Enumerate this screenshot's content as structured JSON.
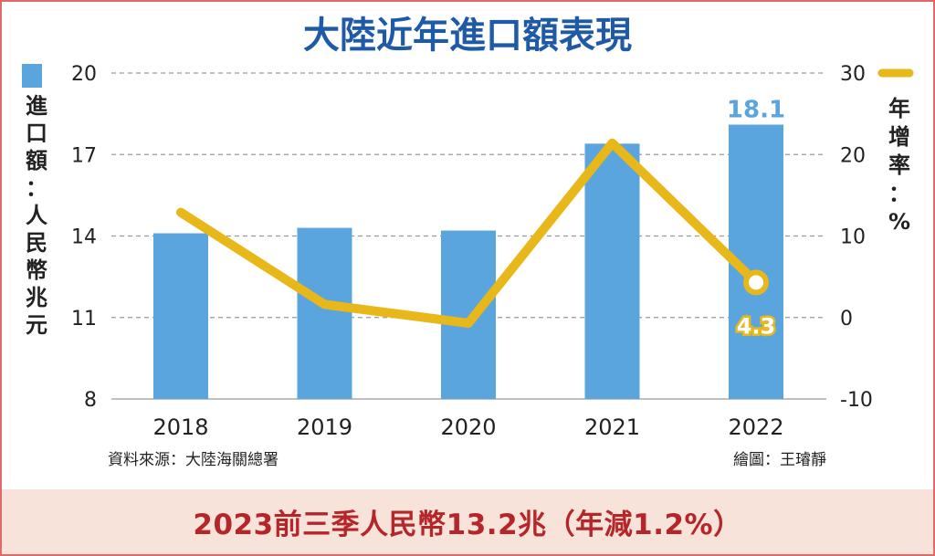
{
  "chart_data": {
    "type": "bar+line",
    "title": "大陸近年進口額表現",
    "categories": [
      "2018",
      "2019",
      "2020",
      "2021",
      "2022"
    ],
    "series": [
      {
        "name": "進口額",
        "type": "bar",
        "axis": "left",
        "values": [
          14.1,
          14.3,
          14.2,
          17.4,
          18.1
        ]
      },
      {
        "name": "年增率",
        "type": "line",
        "axis": "right",
        "values": [
          12.9,
          1.6,
          -0.7,
          21.4,
          4.3
        ]
      }
    ],
    "y_left": {
      "label": "進口額：人民幣兆元",
      "range": [
        8,
        20
      ],
      "ticks": [
        "8",
        "11",
        "14",
        "17",
        "20"
      ]
    },
    "y_right": {
      "label": "年增率：%",
      "range": [
        -10,
        30
      ],
      "ticks": [
        "-10",
        "0",
        "10",
        "20",
        "30"
      ]
    },
    "data_labels": {
      "bar_2022": "18.1",
      "line_2022": "4.3"
    },
    "grid": "dashed horizontal",
    "legend": [
      "bar swatch top-left",
      "line swatch top-right"
    ],
    "colors": {
      "bar": "#5aa5de",
      "line": "#e8b71a",
      "title": "#1f5aa6",
      "footer_text": "#b5262a",
      "footer_bg": "#f7e3d9"
    }
  },
  "source": "資料來源：大陸海關總署",
  "credit": "繪圖：王璿靜",
  "footer_note": "2023前三季人民幣13.2兆（年減1.2%）"
}
